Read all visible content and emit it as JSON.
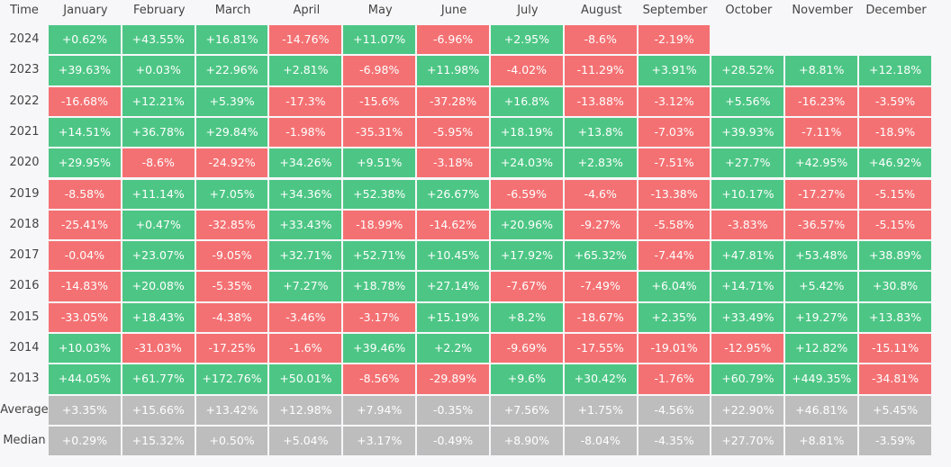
{
  "chart_data": {
    "type": "heatmap",
    "corner_label": "Time",
    "months": [
      "January",
      "February",
      "March",
      "April",
      "May",
      "June",
      "July",
      "August",
      "September",
      "October",
      "November",
      "December"
    ],
    "rows": [
      {
        "label": "2024",
        "kind": "year",
        "values": [
          "+0.62%",
          "+43.55%",
          "+16.81%",
          "-14.76%",
          "+11.07%",
          "-6.96%",
          "+2.95%",
          "-8.6%",
          "-2.19%",
          null,
          null,
          null
        ]
      },
      {
        "label": "2023",
        "kind": "year",
        "values": [
          "+39.63%",
          "+0.03%",
          "+22.96%",
          "+2.81%",
          "-6.98%",
          "+11.98%",
          "-4.02%",
          "-11.29%",
          "+3.91%",
          "+28.52%",
          "+8.81%",
          "+12.18%"
        ]
      },
      {
        "label": "2022",
        "kind": "year",
        "values": [
          "-16.68%",
          "+12.21%",
          "+5.39%",
          "-17.3%",
          "-15.6%",
          "-37.28%",
          "+16.8%",
          "-13.88%",
          "-3.12%",
          "+5.56%",
          "-16.23%",
          "-3.59%"
        ]
      },
      {
        "label": "2021",
        "kind": "year",
        "values": [
          "+14.51%",
          "+36.78%",
          "+29.84%",
          "-1.98%",
          "-35.31%",
          "-5.95%",
          "+18.19%",
          "+13.8%",
          "-7.03%",
          "+39.93%",
          "-7.11%",
          "-18.9%"
        ]
      },
      {
        "label": "2020",
        "kind": "year",
        "values": [
          "+29.95%",
          "-8.6%",
          "-24.92%",
          "+34.26%",
          "+9.51%",
          "-3.18%",
          "+24.03%",
          "+2.83%",
          "-7.51%",
          "+27.7%",
          "+42.95%",
          "+46.92%"
        ]
      },
      {
        "label": "2019",
        "kind": "year",
        "values": [
          "-8.58%",
          "+11.14%",
          "+7.05%",
          "+34.36%",
          "+52.38%",
          "+26.67%",
          "-6.59%",
          "-4.6%",
          "-13.38%",
          "+10.17%",
          "-17.27%",
          "-5.15%"
        ]
      },
      {
        "label": "2018",
        "kind": "year",
        "values": [
          "-25.41%",
          "+0.47%",
          "-32.85%",
          "+33.43%",
          "-18.99%",
          "-14.62%",
          "+20.96%",
          "-9.27%",
          "-5.58%",
          "-3.83%",
          "-36.57%",
          "-5.15%"
        ]
      },
      {
        "label": "2017",
        "kind": "year",
        "values": [
          "-0.04%",
          "+23.07%",
          "-9.05%",
          "+32.71%",
          "+52.71%",
          "+10.45%",
          "+17.92%",
          "+65.32%",
          "-7.44%",
          "+47.81%",
          "+53.48%",
          "+38.89%"
        ]
      },
      {
        "label": "2016",
        "kind": "year",
        "values": [
          "-14.83%",
          "+20.08%",
          "-5.35%",
          "+7.27%",
          "+18.78%",
          "+27.14%",
          "-7.67%",
          "-7.49%",
          "+6.04%",
          "+14.71%",
          "+5.42%",
          "+30.8%"
        ]
      },
      {
        "label": "2015",
        "kind": "year",
        "values": [
          "-33.05%",
          "+18.43%",
          "-4.38%",
          "-3.46%",
          "-3.17%",
          "+15.19%",
          "+8.2%",
          "-18.67%",
          "+2.35%",
          "+33.49%",
          "+19.27%",
          "+13.83%"
        ]
      },
      {
        "label": "2014",
        "kind": "year",
        "values": [
          "+10.03%",
          "-31.03%",
          "-17.25%",
          "-1.6%",
          "+39.46%",
          "+2.2%",
          "-9.69%",
          "-17.55%",
          "-19.01%",
          "-12.95%",
          "+12.82%",
          "-15.11%"
        ]
      },
      {
        "label": "2013",
        "kind": "year",
        "values": [
          "+44.05%",
          "+61.77%",
          "+172.76%",
          "+50.01%",
          "-8.56%",
          "-29.89%",
          "+9.6%",
          "+30.42%",
          "-1.76%",
          "+60.79%",
          "+449.35%",
          "-34.81%"
        ]
      },
      {
        "label": "Average",
        "kind": "summary",
        "values": [
          "+3.35%",
          "+15.66%",
          "+13.42%",
          "+12.98%",
          "+7.94%",
          "-0.35%",
          "+7.56%",
          "+1.75%",
          "-4.56%",
          "+22.90%",
          "+46.81%",
          "+5.45%"
        ]
      },
      {
        "label": "Median",
        "kind": "summary",
        "values": [
          "+0.29%",
          "+15.32%",
          "+0.50%",
          "+5.04%",
          "+3.17%",
          "-0.49%",
          "+8.90%",
          "-8.04%",
          "-4.35%",
          "+27.70%",
          "+8.81%",
          "-3.59%"
        ]
      }
    ],
    "colors": {
      "positive": "#4dc685",
      "negative": "#f47173",
      "summary": "#bdbdbd",
      "background": "#f7f7f9"
    }
  }
}
